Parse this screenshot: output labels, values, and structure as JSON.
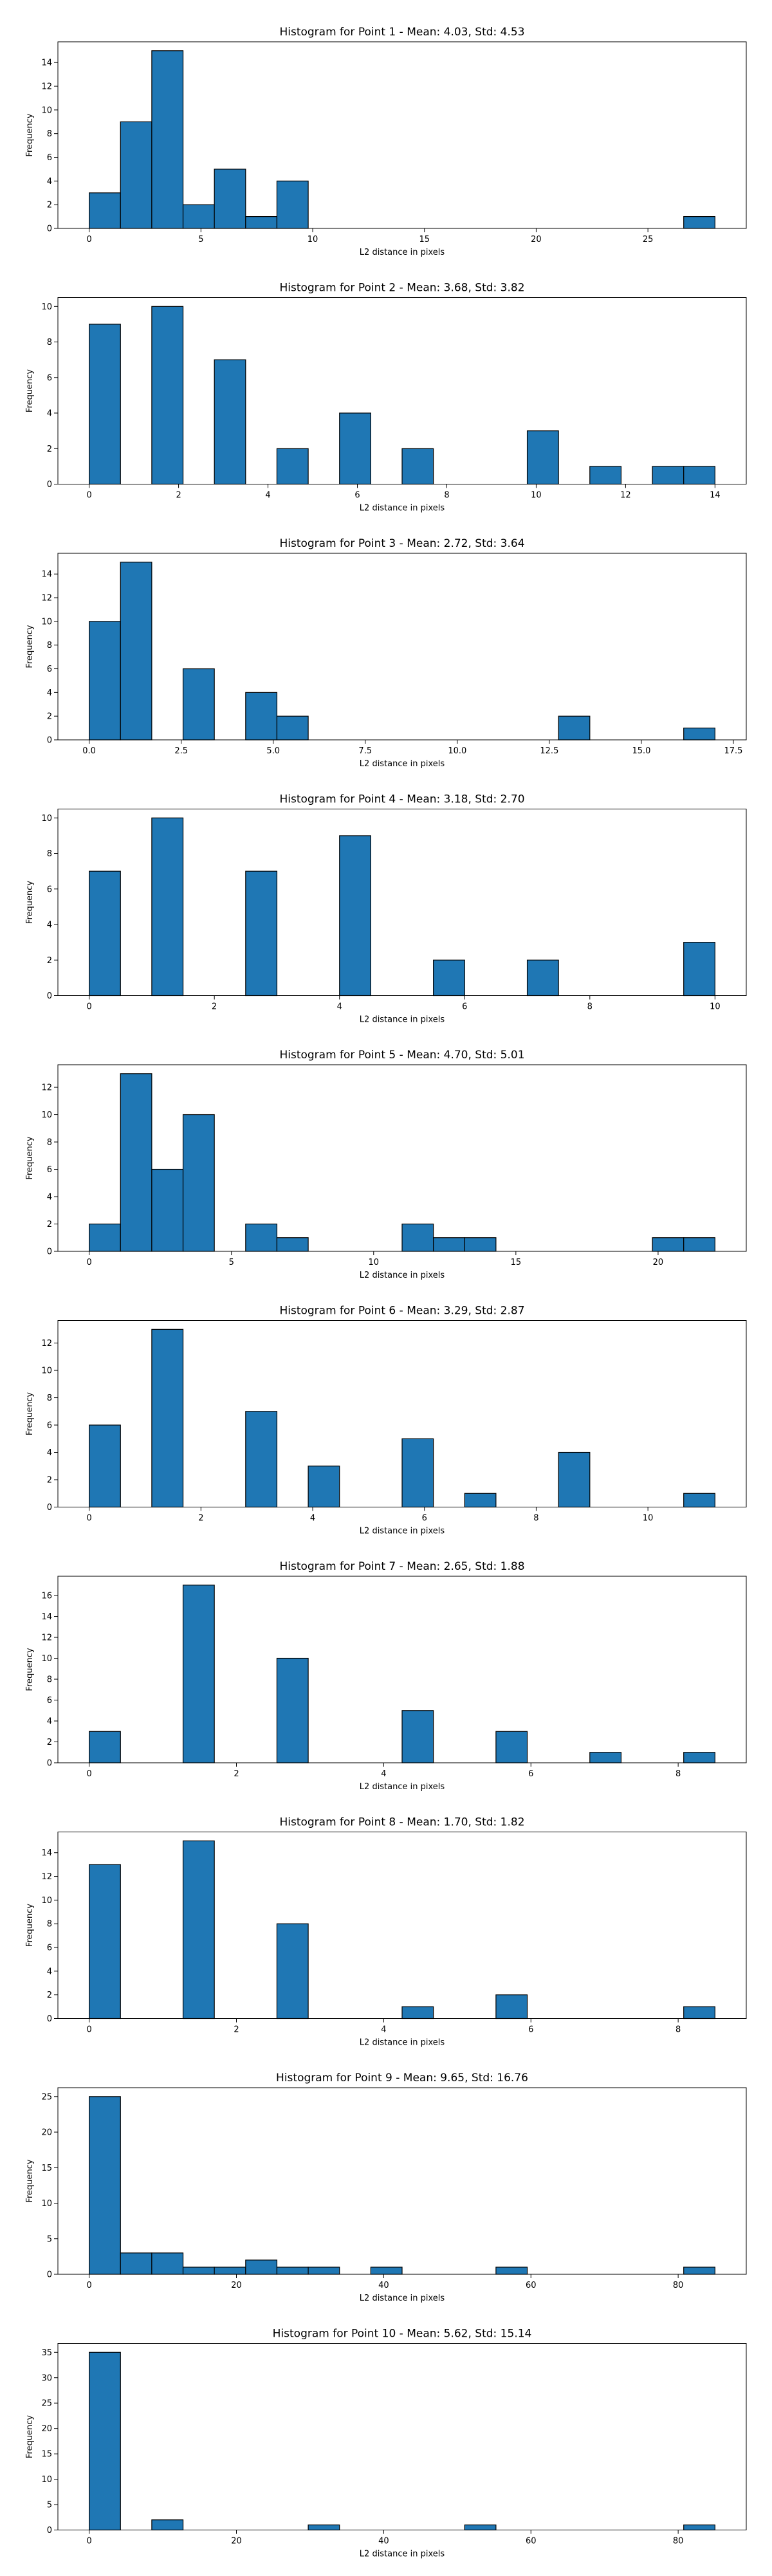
{
  "style": {
    "bar_color": "#1f77b4",
    "edge_color": "#000000",
    "background": "#ffffff"
  },
  "chart_data": [
    {
      "type": "bar",
      "title": "Histogram for Point 1 - Mean: 4.03, Std: 4.53",
      "xlabel": "L2 distance in pixels",
      "ylabel": "Frequency",
      "xlim": [
        -1.4,
        29.4
      ],
      "ylim": [
        0,
        15.75
      ],
      "xticks": [
        0,
        5,
        10,
        15,
        20,
        25
      ],
      "xtick_labels": [
        "0",
        "5",
        "10",
        "15",
        "20",
        "25"
      ],
      "yticks": [
        0,
        2,
        4,
        6,
        8,
        10,
        12,
        14
      ],
      "yticks_labels": [
        "0",
        "2",
        "4",
        "6",
        "8",
        "10",
        "12",
        "14"
      ],
      "bin_edges": [
        0,
        1.4,
        2.8,
        4.2,
        5.6,
        7.0,
        8.4,
        9.8,
        11.2,
        12.6,
        14.0,
        15.4,
        16.8,
        18.2,
        19.6,
        21.0,
        22.4,
        23.8,
        25.2,
        26.6,
        28.0
      ],
      "values": [
        3,
        9,
        15,
        2,
        5,
        1,
        4,
        0,
        0,
        0,
        0,
        0,
        0,
        0,
        0,
        0,
        0,
        0,
        0,
        1
      ]
    },
    {
      "type": "bar",
      "title": "Histogram for Point 2 - Mean: 3.68, Std: 3.82",
      "xlabel": "L2 distance in pixels",
      "ylabel": "Frequency",
      "xlim": [
        -0.7,
        14.7
      ],
      "ylim": [
        0,
        10.5
      ],
      "xticks": [
        0,
        2,
        4,
        6,
        8,
        10,
        12,
        14
      ],
      "xtick_labels": [
        "0",
        "2",
        "4",
        "6",
        "8",
        "10",
        "12",
        "14"
      ],
      "yticks": [
        0,
        2,
        4,
        6,
        8,
        10
      ],
      "yticks_labels": [
        "0",
        "2",
        "4",
        "6",
        "8",
        "10"
      ],
      "bin_edges": [
        0,
        0.7,
        1.4,
        2.1,
        2.8,
        3.5,
        4.2,
        4.9,
        5.6,
        6.3,
        7.0,
        7.7,
        8.4,
        9.1,
        9.8,
        10.5,
        11.2,
        11.9,
        12.6,
        13.3,
        14.0
      ],
      "values": [
        9,
        0,
        10,
        0,
        7,
        0,
        2,
        0,
        4,
        0,
        2,
        0,
        0,
        0,
        3,
        0,
        1,
        0,
        1,
        1
      ]
    },
    {
      "type": "bar",
      "title": "Histogram for Point 3 - Mean: 2.72, Std: 3.64",
      "xlabel": "L2 distance in pixels",
      "ylabel": "Frequency",
      "xlim": [
        -0.85,
        17.85
      ],
      "ylim": [
        0,
        15.75
      ],
      "xticks": [
        0,
        2.5,
        5,
        7.5,
        10,
        12.5,
        15,
        17.5
      ],
      "xtick_labels": [
        "0.0",
        "2.5",
        "5.0",
        "7.5",
        "10.0",
        "12.5",
        "15.0",
        "17.5"
      ],
      "yticks": [
        0,
        2,
        4,
        6,
        8,
        10,
        12,
        14
      ],
      "yticks_labels": [
        "0",
        "2",
        "4",
        "6",
        "8",
        "10",
        "12",
        "14"
      ],
      "bin_edges": [
        0,
        0.85,
        1.7,
        2.55,
        3.4,
        4.25,
        5.1,
        5.95,
        6.8,
        7.65,
        8.5,
        9.35,
        10.2,
        11.05,
        11.9,
        12.75,
        13.6,
        14.45,
        15.3,
        16.15,
        17.0
      ],
      "values": [
        10,
        15,
        0,
        6,
        0,
        4,
        2,
        0,
        0,
        0,
        0,
        0,
        0,
        0,
        0,
        2,
        0,
        0,
        0,
        1
      ]
    },
    {
      "type": "bar",
      "title": "Histogram for Point 4 - Mean: 3.18, Std: 2.70",
      "xlabel": "L2 distance in pixels",
      "ylabel": "Frequency",
      "xlim": [
        -0.5,
        10.5
      ],
      "ylim": [
        0,
        10.5
      ],
      "xticks": [
        0,
        2,
        4,
        6,
        8,
        10
      ],
      "xtick_labels": [
        "0",
        "2",
        "4",
        "6",
        "8",
        "10"
      ],
      "yticks": [
        0,
        2,
        4,
        6,
        8,
        10
      ],
      "yticks_labels": [
        "0",
        "2",
        "4",
        "6",
        "8",
        "10"
      ],
      "bin_edges": [
        0,
        0.5,
        1.0,
        1.5,
        2.0,
        2.5,
        3.0,
        3.5,
        4.0,
        4.5,
        5.0,
        5.5,
        6.0,
        6.5,
        7.0,
        7.5,
        8.0,
        8.5,
        9.0,
        9.5,
        10.0
      ],
      "values": [
        7,
        0,
        10,
        0,
        0,
        7,
        0,
        0,
        9,
        0,
        0,
        2,
        0,
        0,
        2,
        0,
        0,
        0,
        0,
        3
      ]
    },
    {
      "type": "bar",
      "title": "Histogram for Point 5 - Mean: 4.70, Std: 5.01",
      "xlabel": "L2 distance in pixels",
      "ylabel": "Frequency",
      "xlim": [
        -1.1,
        23.1
      ],
      "ylim": [
        0,
        13.65
      ],
      "xticks": [
        0,
        5,
        10,
        15,
        20
      ],
      "xtick_labels": [
        "0",
        "5",
        "10",
        "15",
        "20"
      ],
      "yticks": [
        0,
        2,
        4,
        6,
        8,
        10,
        12
      ],
      "yticks_labels": [
        "0",
        "2",
        "4",
        "6",
        "8",
        "10",
        "12"
      ],
      "bin_edges": [
        0,
        1.1,
        2.2,
        3.3,
        4.4,
        5.5,
        6.6,
        7.7,
        8.8,
        9.9,
        11.0,
        12.1,
        13.2,
        14.3,
        15.4,
        16.5,
        17.6,
        18.7,
        19.8,
        20.9,
        22.0
      ],
      "values": [
        2,
        13,
        6,
        10,
        0,
        2,
        1,
        0,
        0,
        0,
        2,
        1,
        1,
        0,
        0,
        0,
        0,
        0,
        1,
        1
      ]
    },
    {
      "type": "bar",
      "title": "Histogram for Point 6 - Mean: 3.29, Std: 2.87",
      "xlabel": "L2 distance in pixels",
      "ylabel": "Frequency",
      "xlim": [
        -0.56,
        11.76
      ],
      "ylim": [
        0,
        13.65
      ],
      "xticks": [
        0,
        2,
        4,
        6,
        8,
        10
      ],
      "xtick_labels": [
        "0",
        "2",
        "4",
        "6",
        "8",
        "10"
      ],
      "yticks": [
        0,
        2,
        4,
        6,
        8,
        10,
        12
      ],
      "yticks_labels": [
        "0",
        "2",
        "4",
        "6",
        "8",
        "10",
        "12"
      ],
      "bin_edges": [
        0,
        0.56,
        1.12,
        1.68,
        2.24,
        2.8,
        3.36,
        3.92,
        4.48,
        5.04,
        5.6,
        6.16,
        6.72,
        7.28,
        7.84,
        8.4,
        8.96,
        9.52,
        10.08,
        10.64,
        11.2
      ],
      "values": [
        6,
        0,
        13,
        0,
        0,
        7,
        0,
        3,
        0,
        0,
        5,
        0,
        1,
        0,
        0,
        4,
        0,
        0,
        0,
        1
      ]
    },
    {
      "type": "bar",
      "title": "Histogram for Point 7 - Mean: 2.65, Std: 1.88",
      "xlabel": "L2 distance in pixels",
      "ylabel": "Frequency",
      "xlim": [
        -0.425,
        8.925
      ],
      "ylim": [
        0,
        17.85
      ],
      "xticks": [
        0,
        2,
        4,
        6,
        8
      ],
      "xtick_labels": [
        "0",
        "2",
        "4",
        "6",
        "8"
      ],
      "yticks": [
        0,
        2,
        4,
        6,
        8,
        10,
        12,
        14,
        16
      ],
      "yticks_labels": [
        "0",
        "2",
        "4",
        "6",
        "8",
        "10",
        "12",
        "14",
        "16"
      ],
      "bin_edges": [
        0,
        0.425,
        0.85,
        1.275,
        1.7,
        2.125,
        2.55,
        2.975,
        3.4,
        3.825,
        4.25,
        4.675,
        5.1,
        5.525,
        5.95,
        6.375,
        6.8,
        7.225,
        7.65,
        8.075,
        8.5
      ],
      "values": [
        3,
        0,
        0,
        17,
        0,
        0,
        10,
        0,
        0,
        0,
        5,
        0,
        0,
        3,
        0,
        0,
        1,
        0,
        0,
        1
      ]
    },
    {
      "type": "bar",
      "title": "Histogram for Point 8 - Mean: 1.70, Std: 1.82",
      "xlabel": "L2 distance in pixels",
      "ylabel": "Frequency",
      "xlim": [
        -0.425,
        8.925
      ],
      "ylim": [
        0,
        15.75
      ],
      "xticks": [
        0,
        2,
        4,
        6,
        8
      ],
      "xtick_labels": [
        "0",
        "2",
        "4",
        "6",
        "8"
      ],
      "yticks": [
        0,
        2,
        4,
        6,
        8,
        10,
        12,
        14
      ],
      "yticks_labels": [
        "0",
        "2",
        "4",
        "6",
        "8",
        "10",
        "12",
        "14"
      ],
      "bin_edges": [
        0,
        0.425,
        0.85,
        1.275,
        1.7,
        2.125,
        2.55,
        2.975,
        3.4,
        3.825,
        4.25,
        4.675,
        5.1,
        5.525,
        5.95,
        6.375,
        6.8,
        7.225,
        7.65,
        8.075,
        8.5
      ],
      "values": [
        13,
        0,
        0,
        15,
        0,
        0,
        8,
        0,
        0,
        0,
        1,
        0,
        0,
        2,
        0,
        0,
        0,
        0,
        0,
        1
      ]
    },
    {
      "type": "bar",
      "title": "Histogram for Point 9 - Mean: 9.65, Std: 16.76",
      "xlabel": "L2 distance in pixels",
      "ylabel": "Frequency",
      "xlim": [
        -4.25,
        89.25
      ],
      "ylim": [
        0,
        26.25
      ],
      "xticks": [
        0,
        20,
        40,
        60,
        80
      ],
      "xtick_labels": [
        "0",
        "20",
        "40",
        "60",
        "80"
      ],
      "yticks": [
        0,
        5,
        10,
        15,
        20,
        25
      ],
      "yticks_labels": [
        "0",
        "5",
        "10",
        "15",
        "20",
        "25"
      ],
      "bin_edges": [
        0,
        4.25,
        8.5,
        12.75,
        17.0,
        21.25,
        25.5,
        29.75,
        34.0,
        38.25,
        42.5,
        46.75,
        51.0,
        55.25,
        59.5,
        63.75,
        68.0,
        72.25,
        76.5,
        80.75,
        85.0
      ],
      "values": [
        25,
        3,
        3,
        1,
        1,
        2,
        1,
        1,
        0,
        1,
        0,
        0,
        0,
        1,
        0,
        0,
        0,
        0,
        0,
        1
      ]
    },
    {
      "type": "bar",
      "title": "Histogram for Point 10 - Mean: 5.62, Std: 15.14",
      "xlabel": "L2 distance in pixels",
      "ylabel": "Frequency",
      "xlim": [
        -4.25,
        89.25
      ],
      "ylim": [
        0,
        36.75
      ],
      "xticks": [
        0,
        20,
        40,
        60,
        80
      ],
      "xtick_labels": [
        "0",
        "20",
        "40",
        "60",
        "80"
      ],
      "yticks": [
        0,
        5,
        10,
        15,
        20,
        25,
        30,
        35
      ],
      "yticks_labels": [
        "0",
        "5",
        "10",
        "15",
        "20",
        "25",
        "30",
        "35"
      ],
      "bin_edges": [
        0,
        4.25,
        8.5,
        12.75,
        17.0,
        21.25,
        25.5,
        29.75,
        34.0,
        38.25,
        42.5,
        46.75,
        51.0,
        55.25,
        59.5,
        63.75,
        68.0,
        72.25,
        76.5,
        80.75,
        85.0
      ],
      "values": [
        35,
        0,
        2,
        0,
        0,
        0,
        0,
        1,
        0,
        0,
        0,
        0,
        1,
        0,
        0,
        0,
        0,
        0,
        0,
        1
      ]
    }
  ]
}
